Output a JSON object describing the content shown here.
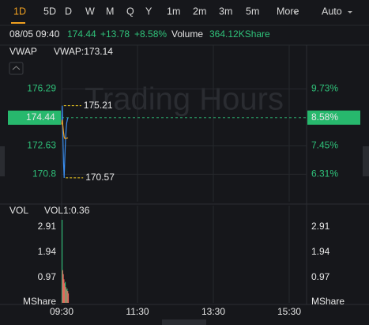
{
  "toolbar": {
    "tabs": [
      "1D",
      "5D",
      "D",
      "W",
      "M",
      "Q",
      "Y",
      "1m",
      "2m",
      "3m",
      "5m",
      "More"
    ],
    "mode": "Auto"
  },
  "quote": {
    "time": "08/05 09:40",
    "price": 174.44,
    "change": "+13.78",
    "change_pct": "+8.58%",
    "volume_label": "Volume",
    "volume": "364.12KShare"
  },
  "chart_data": [
    {
      "type": "line",
      "panel_label": "VWAP",
      "watermark": "Trading Hours",
      "x": [
        "09:30",
        "09:31",
        "09:32",
        "09:33",
        "09:34",
        "09:35",
        "09:36",
        "09:37",
        "09:38",
        "09:39",
        "09:40"
      ],
      "xlim": [
        "09:30",
        "16:00"
      ],
      "xticks": [
        "09:30",
        "11:30",
        "13:30",
        "15:30"
      ],
      "series": [
        {
          "color": "#3a8ef0",
          "values": [
            174.0,
            175.21,
            173.2,
            171.5,
            170.57,
            171.8,
            172.9,
            173.6,
            174.1,
            174.3,
            174.44
          ]
        },
        {
          "name": "VWAP:173.14",
          "color": "#f0a020",
          "values": [
            174.0,
            174.3,
            173.9,
            173.5,
            173.2,
            173.1,
            173.1,
            173.1,
            173.12,
            173.13,
            173.14
          ]
        }
      ],
      "ylim": [
        169.04,
        179.11
      ],
      "yticks": [
        170.8,
        172.63,
        176.29
      ],
      "y2lim": [
        5.21,
        11.49
      ],
      "y2ticks": [
        {
          "value": 6.31,
          "label": "6.31%"
        },
        {
          "value": 7.45,
          "label": "7.45%"
        },
        {
          "value": 9.73,
          "label": "9.73%"
        }
      ],
      "last_pct": {
        "value": 8.58,
        "label": "8.58%"
      },
      "annotations": [
        {
          "x": "09:31",
          "value": 175.21
        },
        {
          "x": "09:34",
          "value": 170.57
        }
      ],
      "grid": true
    },
    {
      "type": "bar",
      "panel_label": "VOL",
      "y_label": "MShare",
      "x": [
        "09:30",
        "09:31",
        "09:32",
        "09:33",
        "09:34",
        "09:35",
        "09:36",
        "09:37",
        "09:38",
        "09:39",
        "09:40"
      ],
      "xlim": [
        "09:30",
        "16:00"
      ],
      "xticks": [
        "09:30",
        "11:30",
        "13:30",
        "15:30"
      ],
      "series": [
        {
          "name": "VOL1:0.36",
          "color": "#e8665c",
          "values": [
            3.18,
            1.25,
            1.1,
            0.9,
            0.75,
            0.8,
            0.6,
            0.5,
            0.55,
            0.45,
            0.36
          ],
          "colors": [
            "#2fc27a",
            "#e8665c",
            "#e8665c",
            "#e8665c",
            "#e8665c",
            "#2fc27a",
            "#e8665c",
            "#e8665c",
            "#2fc27a",
            "#e8665c",
            "#e8665c"
          ]
        }
      ],
      "ylim": [
        0,
        3.27
      ],
      "yticks": [
        0.97,
        1.94,
        2.91
      ],
      "grid": true
    }
  ]
}
